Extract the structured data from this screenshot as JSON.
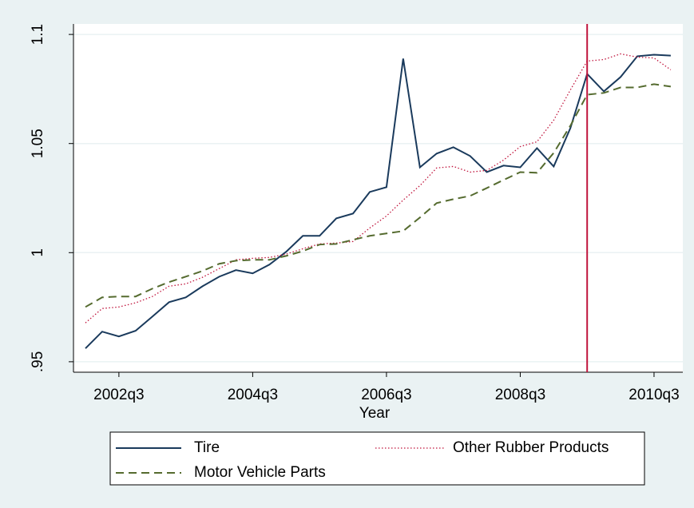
{
  "chart_data": {
    "type": "line",
    "x_label": "Year",
    "categories": [
      null,
      null,
      "2002q3",
      null,
      null,
      null,
      null,
      null,
      null,
      null,
      "2004q3",
      null,
      null,
      null,
      null,
      null,
      null,
      null,
      "2006q3",
      null,
      null,
      null,
      null,
      null,
      null,
      null,
      "2008q3",
      null,
      null,
      null,
      null,
      null,
      null,
      null,
      "2010q3",
      null
    ],
    "series": [
      {
        "name": "Tire",
        "color": "#1a3a5c",
        "dash": "solid",
        "values": [
          0.9561,
          0.9638,
          0.9616,
          0.9642,
          0.9707,
          0.9773,
          0.9795,
          0.9846,
          0.989,
          0.992,
          0.9905,
          0.9945,
          1.0004,
          1.0077,
          1.0077,
          1.0157,
          1.0179,
          1.0278,
          1.03,
          1.0889,
          1.0391,
          1.0454,
          1.0483,
          1.0443,
          1.0369,
          1.0399,
          1.0391,
          1.0479,
          1.0395,
          1.0571,
          1.0819,
          1.0739,
          1.0805,
          1.09,
          1.0907,
          1.0903
        ]
      },
      {
        "name": "Other Rubber Products",
        "color": "#c0143c",
        "dash": "dotted",
        "values": [
          0.9678,
          0.9744,
          0.9751,
          0.977,
          0.9799,
          0.9846,
          0.9857,
          0.9887,
          0.9927,
          0.9967,
          0.9974,
          0.9978,
          0.9993,
          1.0018,
          1.004,
          1.0044,
          1.0051,
          1.0113,
          1.0168,
          1.0241,
          1.0307,
          1.0388,
          1.0395,
          1.0369,
          1.0377,
          1.0424,
          1.0486,
          1.0508,
          1.0607,
          1.0746,
          1.0878,
          1.0885,
          1.0911,
          1.0896,
          1.0892,
          1.0838
        ]
      },
      {
        "name": "Motor Vehicle Parts",
        "color": "#556b2f",
        "dash": "dashed",
        "values": [
          0.9751,
          0.9795,
          0.9799,
          0.9799,
          0.9835,
          0.9865,
          0.989,
          0.9916,
          0.9949,
          0.9963,
          0.9967,
          0.9967,
          0.9985,
          1.0007,
          1.0037,
          1.004,
          1.0059,
          1.0077,
          1.0088,
          1.0099,
          1.0161,
          1.0227,
          1.0245,
          1.026,
          1.0296,
          1.0333,
          1.0369,
          1.0366,
          1.0457,
          1.0582,
          1.0724,
          1.0732,
          1.0757,
          1.0757,
          1.0772,
          1.0761
        ]
      }
    ],
    "ylim": [
      0.9452,
      1.1048
    ],
    "yticks": [
      {
        "value": 0.95,
        "label": ".95"
      },
      1,
      1.05,
      1.1
    ],
    "grid": true,
    "xline": {
      "category_index": 30,
      "color": "#c0143c"
    },
    "legend": "bottom"
  }
}
